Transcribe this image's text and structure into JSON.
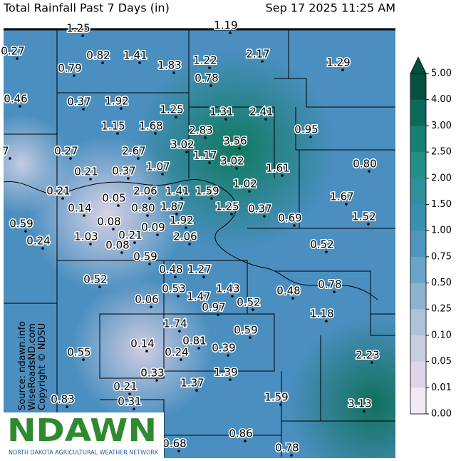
{
  "header": {
    "title": "Total Rainfall Past 7 Days (in)",
    "timestamp": "Sep 17 2025 11:25 AM"
  },
  "stations": [
    "1.25",
    "1.19",
    "0.27",
    "0.82",
    "1.41",
    "1.83",
    "1.22",
    "2.17",
    "1.29",
    "0.79",
    "0.78",
    "0.46",
    "0.37",
    "1.92",
    "1.25",
    "1.31",
    "2.41",
    "1.15",
    "1.68",
    "2.83",
    "3.56",
    "0.95",
    "3.02",
    "2.67",
    "0.27",
    "7",
    "1.17",
    "3.02",
    "1.61",
    "0.80",
    "0.21",
    "0.37",
    "1.07",
    "1.02",
    "2.06",
    "1.41",
    "1.59",
    "0.21",
    "0.05",
    "1.67",
    "0.14",
    "0.80",
    "1.87",
    "1.25",
    "0.37",
    "0.69",
    "1.52",
    "0.59",
    "0.08",
    "0.09",
    "1.92",
    "0.24",
    "1.03",
    "0.21",
    "0.08",
    "2.06",
    "0.52",
    "0.59",
    "0.48",
    "1.27",
    "0.52",
    "0.78",
    "0.53",
    "1.43",
    "1.47",
    "0.48",
    "0.06",
    "0.52",
    "0.97",
    "1.18",
    "1.74",
    "0.59",
    "0.81",
    "0.14",
    "0.39",
    "0.24",
    "0.55",
    "2.23",
    "0.33",
    "1.39",
    "0.21",
    "1.37",
    "0.31",
    "1.59",
    "0.83",
    "3.13",
    "0.86",
    "0.68",
    "0.78"
  ],
  "colorbar": {
    "labels": [
      "5.00",
      "4.00",
      "3.00",
      "2.50",
      "2.00",
      "1.50",
      "1.00",
      "0.75",
      "0.50",
      "0.25",
      "0.10",
      "0.05",
      "0.01",
      "0.00"
    ],
    "colors": [
      "#06503f",
      "#0b6a5a",
      "#178073",
      "#238f86",
      "#2f8f9b",
      "#3a8fb0",
      "#4c96c0",
      "#69a4c9",
      "#8cb4d1",
      "#aec3d9",
      "#c8cde0",
      "#dcd6e8",
      "#efeaf4"
    ]
  },
  "credits": [
    "Source: ndawn.info",
    "WiseRoadsND.com",
    "Copyright © NDSU"
  ],
  "logo": {
    "name": "NDAWN",
    "subtitle": "NORTH DAKOTA AGRICULTURAL WEATHER NETWORK"
  }
}
